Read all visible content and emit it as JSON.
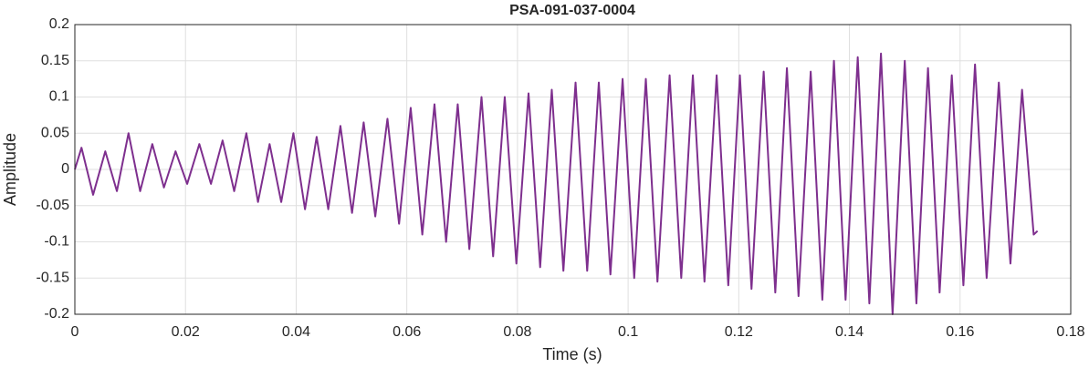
{
  "chart_data": {
    "type": "line",
    "title": "PSA-091-037-0004",
    "xlabel": "Time (s)",
    "ylabel": "Amplitude",
    "x": [
      0,
      0.0012,
      0.0033,
      0.0055,
      0.0076,
      0.0097,
      0.0118,
      0.014,
      0.0161,
      0.0182,
      0.0203,
      0.0225,
      0.0246,
      0.0267,
      0.0288,
      0.031,
      0.0331,
      0.0352,
      0.0373,
      0.0395,
      0.0416,
      0.0437,
      0.0458,
      0.048,
      0.0501,
      0.0522,
      0.0543,
      0.0565,
      0.0586,
      0.0607,
      0.0628,
      0.065,
      0.0671,
      0.0692,
      0.0713,
      0.0735,
      0.0756,
      0.0777,
      0.0798,
      0.082,
      0.0841,
      0.0862,
      0.0883,
      0.0905,
      0.0926,
      0.0947,
      0.0968,
      0.099,
      0.1011,
      0.1032,
      0.1053,
      0.1075,
      0.1096,
      0.1117,
      0.1138,
      0.116,
      0.1181,
      0.1202,
      0.1223,
      0.1245,
      0.1266,
      0.1287,
      0.1308,
      0.133,
      0.1351,
      0.1372,
      0.1393,
      0.1415,
      0.1436,
      0.1457,
      0.1478,
      0.15,
      0.1521,
      0.1542,
      0.1563,
      0.1585,
      0.1606,
      0.1627,
      0.1648,
      0.167,
      0.1691,
      0.1712,
      0.1733,
      0.174
    ],
    "series": [
      {
        "color": "#7e2f8e",
        "values": [
          0,
          0.03,
          -0.035,
          0.025,
          -0.03,
          0.05,
          -0.03,
          0.035,
          -0.025,
          0.025,
          -0.02,
          0.035,
          -0.02,
          0.04,
          -0.03,
          0.05,
          -0.045,
          0.035,
          -0.045,
          0.05,
          -0.055,
          0.045,
          -0.055,
          0.06,
          -0.06,
          0.065,
          -0.065,
          0.07,
          -0.075,
          0.085,
          -0.09,
          0.09,
          -0.1,
          0.09,
          -0.11,
          0.1,
          -0.12,
          0.1,
          -0.13,
          0.105,
          -0.135,
          0.11,
          -0.14,
          0.12,
          -0.14,
          0.12,
          -0.145,
          0.125,
          -0.15,
          0.125,
          -0.155,
          0.13,
          -0.15,
          0.13,
          -0.155,
          0.13,
          -0.16,
          0.13,
          -0.165,
          0.135,
          -0.17,
          0.14,
          -0.175,
          0.135,
          -0.18,
          0.15,
          -0.18,
          0.155,
          -0.185,
          0.16,
          -0.2,
          0.15,
          -0.185,
          0.14,
          -0.17,
          0.13,
          -0.16,
          0.145,
          -0.15,
          0.12,
          -0.13,
          0.11,
          -0.09,
          -0.085
        ]
      }
    ],
    "xlim": [
      0,
      0.18
    ],
    "xticks": [
      0,
      0.02,
      0.04,
      0.06,
      0.08,
      0.1,
      0.12,
      0.14,
      0.16,
      0.18
    ],
    "ylim": [
      -0.2,
      0.2
    ],
    "yticks": [
      -0.2,
      -0.15,
      -0.1,
      -0.05,
      0,
      0.05,
      0.1,
      0.15,
      0.2
    ],
    "grid": true
  }
}
